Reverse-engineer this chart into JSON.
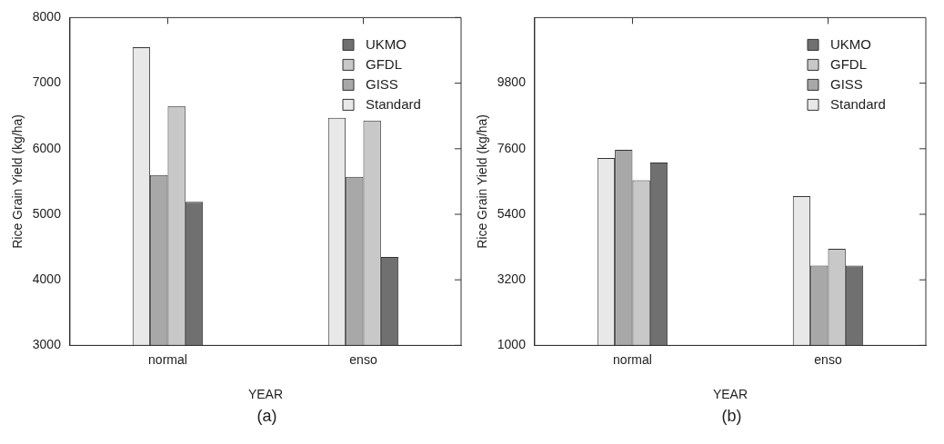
{
  "chart_data": [
    {
      "type": "bar",
      "categories": [
        "normal",
        "enso"
      ],
      "xlabel": "YEAR",
      "ylabel": "Rice Grain Yield (kg/ha)",
      "ylim": [
        3000,
        8000
      ],
      "yticks": [
        3000,
        4000,
        5000,
        6000,
        7000,
        8000
      ],
      "grid": false,
      "legend": "top right",
      "annotations": [
        "(a)"
      ],
      "series": [
        {
          "name": "Standard",
          "color": "#e8e8e8",
          "values": [
            7550,
            6470
          ]
        },
        {
          "name": "GISS",
          "color": "#a8a8a8",
          "values": [
            5600,
            5570
          ]
        },
        {
          "name": "GFDL",
          "color": "#c8c8c8",
          "values": [
            6650,
            6430
          ]
        },
        {
          "name": "UKMO",
          "color": "#707070",
          "values": [
            5190,
            4350
          ]
        }
      ]
    },
    {
      "type": "bar",
      "categories": [
        "normal",
        "enso"
      ],
      "xlabel": "YEAR",
      "ylabel": "Rice Grain Yield (kg/ha)",
      "ylim": [
        1000,
        12000
      ],
      "yticks": [
        1000,
        3200,
        5400,
        7600,
        9800
      ],
      "grid": false,
      "legend": "top right",
      "annotations": [
        "(b)"
      ],
      "series": [
        {
          "name": "Standard",
          "color": "#e8e8e8",
          "values": [
            7290,
            6010
          ]
        },
        {
          "name": "GISS",
          "color": "#a8a8a8",
          "values": [
            7560,
            3680
          ]
        },
        {
          "name": "GFDL",
          "color": "#c8c8c8",
          "values": [
            6540,
            4240
          ]
        },
        {
          "name": "UKMO",
          "color": "#707070",
          "values": [
            7140,
            3680
          ]
        }
      ]
    }
  ]
}
